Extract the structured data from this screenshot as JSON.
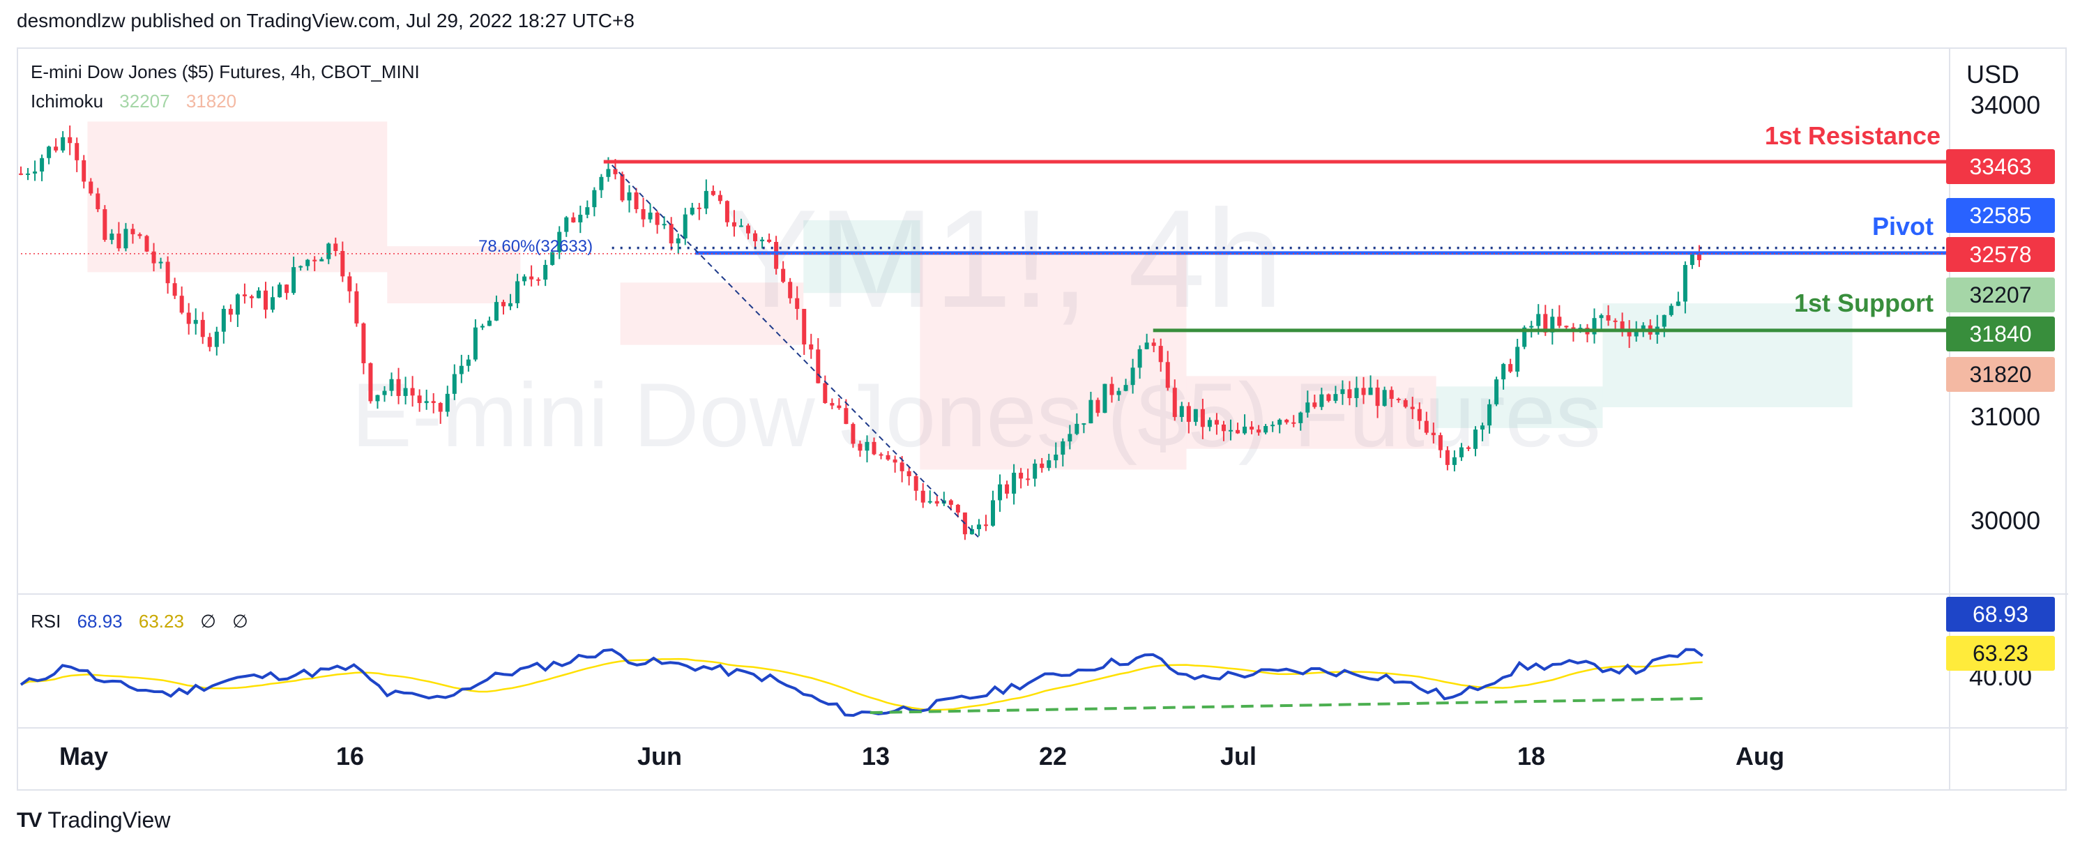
{
  "publisher": "desmondlzw published on TradingView.com, Jul 29, 2022 18:27 UTC+8",
  "brand": "TradingView",
  "symbol_title": "E-mini Dow Jones ($5) Futures, 4h, CBOT_MINI",
  "watermark_ticker": "YM1!, 4h",
  "watermark_name": "E-mini Dow Jones ($5) Futures",
  "ichimoku": {
    "label": "Ichimoku",
    "v1": "32207",
    "v2": "31820"
  },
  "rsi": {
    "label": "RSI",
    "v1": "68.93",
    "v2": "63.23",
    "v3": "∅",
    "v4": "∅"
  },
  "currency": "USD",
  "fib_label": "78.60%(32633)",
  "annotations": {
    "resistance": "1st Resistance",
    "pivot": "Pivot",
    "support": "1st Support"
  },
  "price_badges": [
    {
      "value": "33463",
      "color": "#f23645"
    },
    {
      "value": "32585",
      "color": "#2962ff"
    },
    {
      "value": "32578",
      "color": "#f23645"
    },
    {
      "value": "32207",
      "color": "#a5d6a7",
      "text_color": "#131722"
    },
    {
      "value": "31840",
      "color": "#388e3c"
    },
    {
      "value": "31820",
      "color": "#f4b9a3",
      "text_color": "#131722"
    }
  ],
  "rsi_badges": [
    {
      "value": "68.93",
      "color": "#1e45c8"
    },
    {
      "value": "63.23",
      "color": "#ffeb3b",
      "text_color": "#131722"
    }
  ],
  "colors": {
    "resistance": "#f23645",
    "pivot": "#2962ff",
    "support": "#388e3c",
    "candle_up": "#089981",
    "candle_down": "#f23645",
    "rsi_line": "#1e45c8",
    "rsi_ma": "#ffe000"
  },
  "chart_data": {
    "type": "candlestick",
    "timeframe": "4h",
    "x_ticks": [
      "May",
      "16",
      "Jun",
      "13",
      "22",
      "Jul",
      "18",
      "Aug"
    ],
    "y_ticks": [
      34000,
      31000,
      30000
    ],
    "y_range": [
      29700,
      34400
    ],
    "levels": {
      "resistance": 33463,
      "pivot": 32585,
      "last_price": 32578,
      "support": 31840,
      "fib_786": 32633
    },
    "ichimoku_values": {
      "span_a": 32207,
      "span_b": 31820
    },
    "price_path": [
      {
        "d": 0,
        "p": 33350
      },
      {
        "d": 3,
        "p": 33750
      },
      {
        "d": 5,
        "p": 32700
      },
      {
        "d": 7,
        "p": 32750
      },
      {
        "d": 9,
        "p": 32250
      },
      {
        "d": 11,
        "p": 31700
      },
      {
        "d": 13,
        "p": 32200
      },
      {
        "d": 15,
        "p": 32100
      },
      {
        "d": 17,
        "p": 32500
      },
      {
        "d": 19,
        "p": 32700
      },
      {
        "d": 21,
        "p": 31250
      },
      {
        "d": 23,
        "p": 31300
      },
      {
        "d": 25,
        "p": 31000
      },
      {
        "d": 27,
        "p": 31700
      },
      {
        "d": 29,
        "p": 32100
      },
      {
        "d": 31,
        "p": 32400
      },
      {
        "d": 33,
        "p": 32900
      },
      {
        "d": 35,
        "p": 33350
      },
      {
        "d": 37,
        "p": 33050
      },
      {
        "d": 39,
        "p": 32700
      },
      {
        "d": 41,
        "p": 33150
      },
      {
        "d": 43,
        "p": 32850
      },
      {
        "d": 45,
        "p": 32650
      },
      {
        "d": 46,
        "p": 32350
      },
      {
        "d": 48,
        "p": 31250
      },
      {
        "d": 50,
        "p": 30800
      },
      {
        "d": 52,
        "p": 30700
      },
      {
        "d": 54,
        "p": 30250
      },
      {
        "d": 56,
        "p": 30100
      },
      {
        "d": 57,
        "p": 29850
      },
      {
        "d": 59,
        "p": 30300
      },
      {
        "d": 61,
        "p": 30550
      },
      {
        "d": 63,
        "p": 30900
      },
      {
        "d": 65,
        "p": 31200
      },
      {
        "d": 67,
        "p": 31500
      },
      {
        "d": 68,
        "p": 31800
      },
      {
        "d": 69,
        "p": 31100
      },
      {
        "d": 71,
        "p": 30950
      },
      {
        "d": 73,
        "p": 30800
      },
      {
        "d": 75,
        "p": 31000
      },
      {
        "d": 77,
        "p": 31050
      },
      {
        "d": 79,
        "p": 31200
      },
      {
        "d": 81,
        "p": 31250
      },
      {
        "d": 83,
        "p": 31050
      },
      {
        "d": 85,
        "p": 30900
      },
      {
        "d": 86,
        "p": 30500
      },
      {
        "d": 88,
        "p": 31100
      },
      {
        "d": 90,
        "p": 31700
      },
      {
        "d": 91,
        "p": 31950
      },
      {
        "d": 93,
        "p": 31800
      },
      {
        "d": 95,
        "p": 31950
      },
      {
        "d": 97,
        "p": 31850
      },
      {
        "d": 99,
        "p": 31900
      },
      {
        "d": 100,
        "p": 32500
      },
      {
        "d": 101,
        "p": 32578
      }
    ],
    "rsi_path": [
      {
        "d": 0,
        "v": 50
      },
      {
        "d": 3,
        "v": 64
      },
      {
        "d": 5,
        "v": 52
      },
      {
        "d": 9,
        "v": 45
      },
      {
        "d": 13,
        "v": 55
      },
      {
        "d": 17,
        "v": 58
      },
      {
        "d": 20,
        "v": 62
      },
      {
        "d": 22,
        "v": 45
      },
      {
        "d": 25,
        "v": 42
      },
      {
        "d": 29,
        "v": 58
      },
      {
        "d": 33,
        "v": 66
      },
      {
        "d": 35,
        "v": 73
      },
      {
        "d": 37,
        "v": 66
      },
      {
        "d": 41,
        "v": 62
      },
      {
        "d": 45,
        "v": 55
      },
      {
        "d": 48,
        "v": 40
      },
      {
        "d": 50,
        "v": 32
      },
      {
        "d": 52,
        "v": 34
      },
      {
        "d": 55,
        "v": 38
      },
      {
        "d": 58,
        "v": 45
      },
      {
        "d": 61,
        "v": 54
      },
      {
        "d": 65,
        "v": 64
      },
      {
        "d": 68,
        "v": 69
      },
      {
        "d": 70,
        "v": 55
      },
      {
        "d": 74,
        "v": 58
      },
      {
        "d": 78,
        "v": 60
      },
      {
        "d": 82,
        "v": 56
      },
      {
        "d": 86,
        "v": 42
      },
      {
        "d": 90,
        "v": 62
      },
      {
        "d": 93,
        "v": 64
      },
      {
        "d": 97,
        "v": 60
      },
      {
        "d": 100,
        "v": 72
      },
      {
        "d": 101,
        "v": 69
      }
    ],
    "rsi_y_tick": "40.00",
    "rsi_support_trendline": [
      {
        "d": 51,
        "v": 33
      },
      {
        "d": 101,
        "v": 42
      }
    ]
  }
}
